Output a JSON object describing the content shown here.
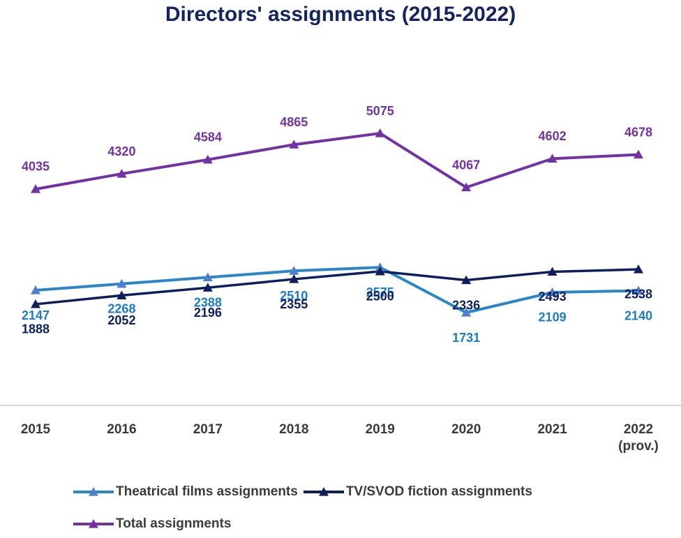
{
  "chart_data": {
    "type": "line",
    "title": "Directors' assignments (2015-2022)",
    "categories": [
      "2015",
      "2016",
      "2017",
      "2018",
      "2019",
      "2020",
      "2021",
      "2022 (prov.)"
    ],
    "series": [
      {
        "name": "Theatrical films assignments",
        "color": "#2a86c8",
        "marker_color": "#4f7fcb",
        "label_color": "#1c7bc2",
        "values": [
          2147,
          2268,
          2388,
          2510,
          2575,
          1731,
          2109,
          2140
        ]
      },
      {
        "name": "TV/SVOD fiction assignments",
        "color": "#0d1f5c",
        "marker_color": "#0d1f5c",
        "label_color": "#0d1f5c",
        "values": [
          1888,
          2052,
          2196,
          2355,
          2500,
          2336,
          2493,
          2538
        ]
      },
      {
        "name": "Total assignments",
        "color": "#7332a3",
        "marker_color": "#7332a3",
        "label_color": "#7332a3",
        "values": [
          4035,
          4320,
          4584,
          4865,
          5075,
          4067,
          4602,
          4678
        ]
      }
    ],
    "ylim": [
      0,
      6000
    ]
  }
}
